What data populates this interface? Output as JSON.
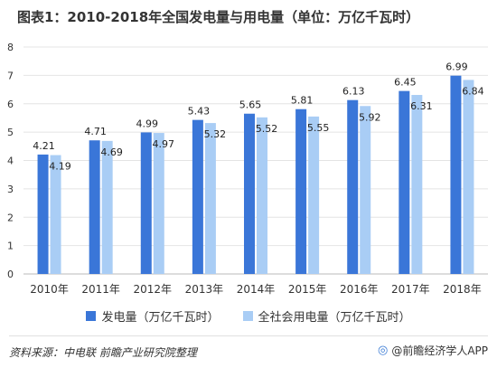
{
  "title": "图表1：2010-2018年全国发电量与用电量（单位：万亿千瓦时）",
  "source": "资料来源：中电联 前瞻产业研究院整理",
  "brand": "@前瞻经济学人APP",
  "colors": {
    "series1": "#3a76d8",
    "series2": "#a9cdf5",
    "grid": "#e4e4e4"
  },
  "chart_data": {
    "type": "bar",
    "categories": [
      "2010年",
      "2011年",
      "2012年",
      "2013年",
      "2014年",
      "2015年",
      "2016年",
      "2017年",
      "2018年"
    ],
    "series": [
      {
        "name": "发电量（万亿千瓦时）",
        "values": [
          4.21,
          4.71,
          4.99,
          5.43,
          5.65,
          5.81,
          6.13,
          6.45,
          6.99
        ]
      },
      {
        "name": "全社会用电量（万亿千瓦时）",
        "values": [
          4.19,
          4.69,
          4.97,
          5.32,
          5.52,
          5.55,
          5.92,
          6.31,
          6.84
        ]
      }
    ],
    "ylim": [
      0,
      8
    ],
    "yticks": [
      "0",
      "1",
      "2",
      "3",
      "4",
      "5",
      "6",
      "7",
      "8"
    ],
    "grid": true,
    "legend": "bottom"
  }
}
